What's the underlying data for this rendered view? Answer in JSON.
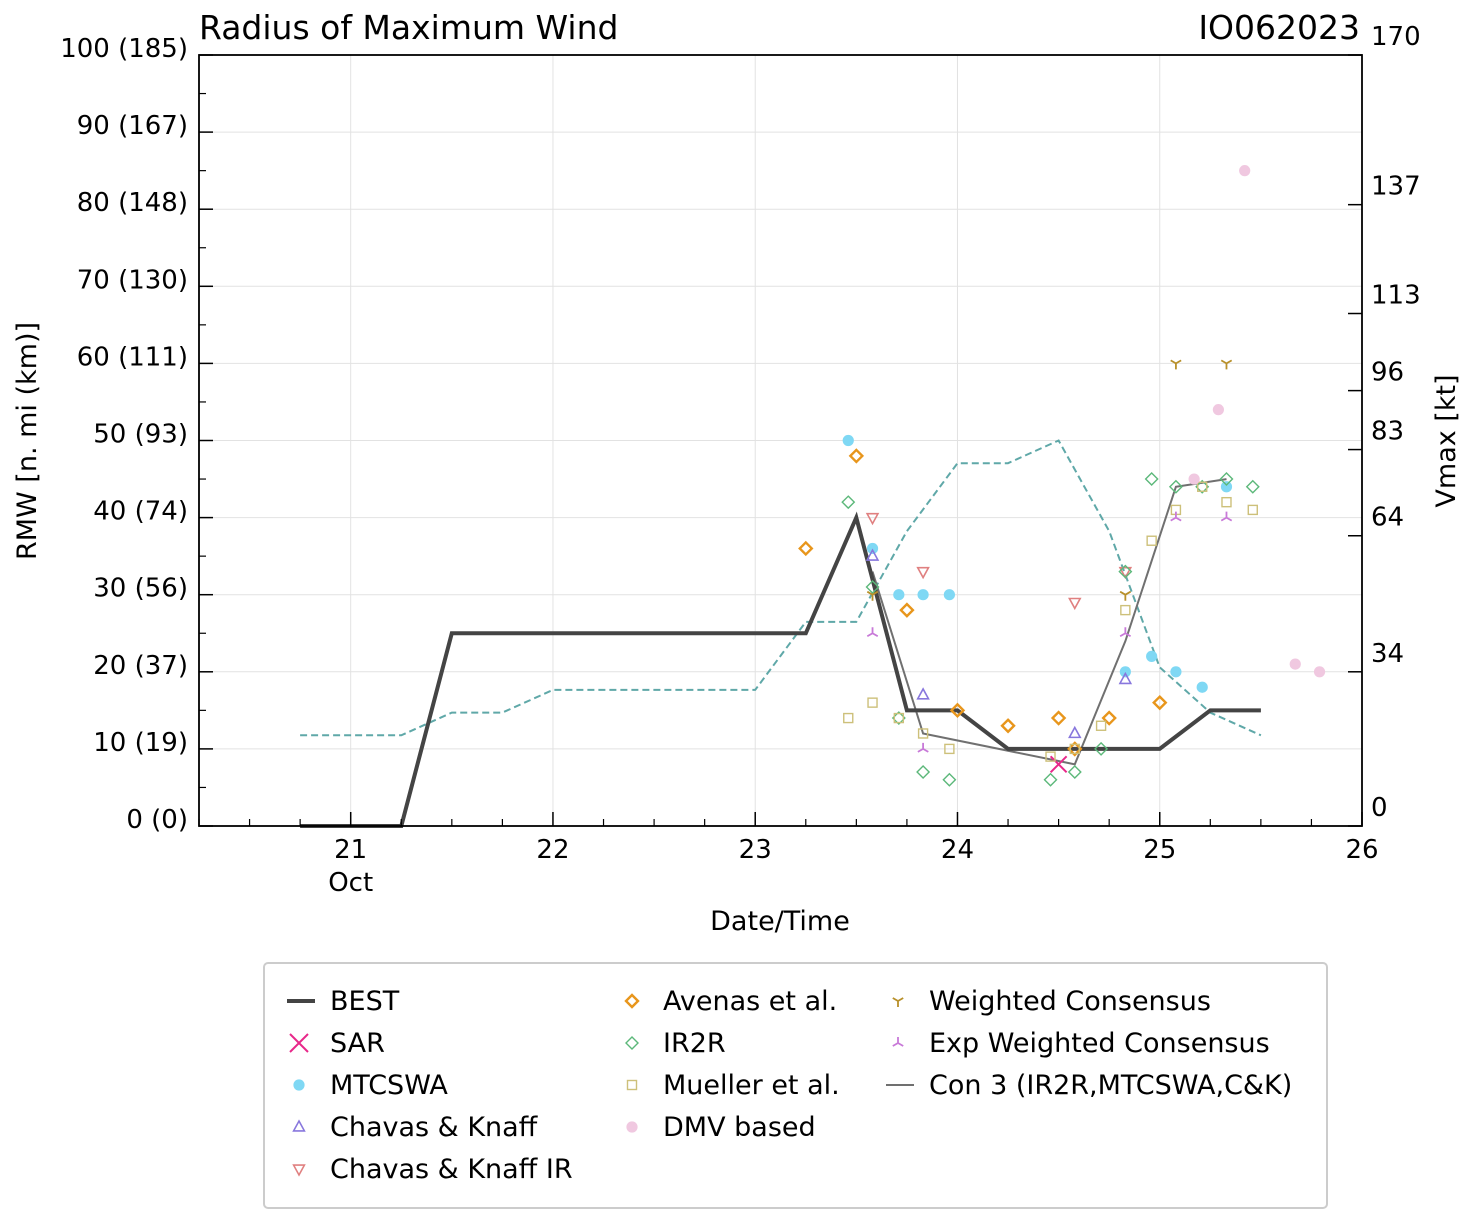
{
  "chart_data": {
    "type": "line",
    "title": "Radius of Maximum Wind",
    "storm_id": "IO062023",
    "xlabel": "Date/Time",
    "ylabel": "RMW [n. mi (km)]",
    "y2label": "Vmax [kt]",
    "xlim": [
      20.25,
      26.0
    ],
    "ylim": [
      0,
      100
    ],
    "y2lim": [
      0,
      170
    ],
    "grid": true,
    "legend_position": "bottom",
    "x_ticks": [
      {
        "value": 21,
        "label": "21",
        "sublabel": "Oct"
      },
      {
        "value": 22,
        "label": "22",
        "sublabel": ""
      },
      {
        "value": 23,
        "label": "23",
        "sublabel": ""
      },
      {
        "value": 24,
        "label": "24",
        "sublabel": ""
      },
      {
        "value": 25,
        "label": "25",
        "sublabel": ""
      },
      {
        "value": 26,
        "label": "26",
        "sublabel": ""
      }
    ],
    "y_ticks": [
      {
        "value": 0,
        "label": "0 (0)"
      },
      {
        "value": 10,
        "label": "10 (19)"
      },
      {
        "value": 20,
        "label": "20 (37)"
      },
      {
        "value": 30,
        "label": "30 (56)"
      },
      {
        "value": 40,
        "label": "40 (74)"
      },
      {
        "value": 50,
        "label": "50 (93)"
      },
      {
        "value": 60,
        "label": "60 (111)"
      },
      {
        "value": 70,
        "label": "70 (130)"
      },
      {
        "value": 80,
        "label": "80 (148)"
      },
      {
        "value": 90,
        "label": "90 (167)"
      },
      {
        "value": 100,
        "label": "100 (185)"
      }
    ],
    "y2_ticks": [
      {
        "value": 0,
        "label": "0"
      },
      {
        "value": 34,
        "label": "34"
      },
      {
        "value": 64,
        "label": "64"
      },
      {
        "value": 83,
        "label": "83"
      },
      {
        "value": 96,
        "label": "96"
      },
      {
        "value": 113,
        "label": "113"
      },
      {
        "value": 137,
        "label": "137"
      },
      {
        "value": 170,
        "label": "170"
      }
    ],
    "series": [
      {
        "name": "BEST",
        "kind": "line",
        "axis": "left",
        "color": "#444444",
        "x": [
          20.75,
          21.0,
          21.25,
          21.5,
          21.75,
          22.0,
          22.25,
          22.5,
          22.75,
          23.0,
          23.25,
          23.5,
          23.75,
          24.0,
          24.25,
          24.5,
          24.75,
          25.0,
          25.25,
          25.5
        ],
        "y": [
          0,
          0,
          0,
          25,
          25,
          25,
          25,
          25,
          25,
          25,
          25,
          40,
          15,
          15,
          10,
          10,
          10,
          10,
          15,
          15
        ]
      },
      {
        "name": "SAR",
        "kind": "marker",
        "marker": "x",
        "axis": "left",
        "color": "#e8288a",
        "x": [
          24.5
        ],
        "y": [
          8
        ]
      },
      {
        "name": "MTCSWA",
        "kind": "marker",
        "marker": "circle",
        "axis": "left",
        "color": "#7fd8f4",
        "x": [
          23.46,
          23.58,
          23.71,
          23.83,
          23.96,
          24.83,
          24.96,
          25.08,
          25.21,
          25.33
        ],
        "y": [
          50,
          36,
          30,
          30,
          30,
          20,
          22,
          20,
          18,
          44
        ]
      },
      {
        "name": "Chavas & Knaff",
        "kind": "marker",
        "marker": "triangle-up",
        "axis": "left",
        "color": "#8877dd",
        "x": [
          23.58,
          23.83,
          24.58,
          24.83
        ],
        "y": [
          35,
          17,
          12,
          19
        ]
      },
      {
        "name": "Chavas & Knaff IR",
        "kind": "marker",
        "marker": "triangle-down",
        "axis": "left",
        "color": "#e08080",
        "x": [
          23.58,
          23.83,
          24.58,
          24.83
        ],
        "y": [
          40,
          33,
          29,
          33
        ]
      },
      {
        "name": "Avenas et al.",
        "kind": "marker",
        "marker": "diamond",
        "axis": "left",
        "color": "#e8961c",
        "x": [
          23.25,
          23.5,
          23.75,
          24.0,
          24.25,
          24.5,
          24.58,
          24.75,
          25.0
        ],
        "y": [
          36,
          48,
          28,
          15,
          13,
          14,
          10,
          14,
          16
        ]
      },
      {
        "name": "IR2R",
        "kind": "marker",
        "marker": "diamond-open",
        "axis": "left",
        "color": "#5cb87a",
        "x": [
          23.46,
          23.58,
          23.71,
          23.83,
          23.96,
          24.46,
          24.58,
          24.71,
          24.83,
          24.96,
          25.08,
          25.21,
          25.33,
          25.46
        ],
        "y": [
          42,
          31,
          14,
          7,
          6,
          6,
          7,
          10,
          33,
          45,
          44,
          44,
          45,
          44
        ]
      },
      {
        "name": "Mueller et al.",
        "kind": "marker",
        "marker": "square",
        "axis": "left",
        "color": "#cdc07a",
        "x": [
          23.46,
          23.58,
          23.71,
          23.83,
          23.96,
          24.46,
          24.58,
          24.71,
          24.83,
          24.96,
          25.08,
          25.21,
          25.33,
          25.46
        ],
        "y": [
          14,
          16,
          14,
          12,
          10,
          9,
          10,
          13,
          28,
          37,
          41,
          44,
          42,
          41
        ]
      },
      {
        "name": "DMV based",
        "kind": "marker",
        "marker": "circle",
        "axis": "left",
        "color": "#f0c8e0",
        "x": [
          25.17,
          25.29,
          25.42,
          25.67,
          25.79
        ],
        "y": [
          45,
          54,
          85,
          21,
          20
        ]
      },
      {
        "name": "Weighted Consensus",
        "kind": "marker",
        "marker": "tri-down",
        "axis": "left",
        "color": "#b8902a",
        "x": [
          23.58,
          24.83,
          25.08,
          25.33
        ],
        "y": [
          30,
          30,
          60,
          60
        ]
      },
      {
        "name": "Exp Weighted Consensus",
        "kind": "marker",
        "marker": "tri-up",
        "axis": "left",
        "color": "#c879d8",
        "x": [
          23.58,
          23.83,
          24.83,
          25.08,
          25.33
        ],
        "y": [
          25,
          10,
          25,
          40,
          40
        ]
      },
      {
        "name": "Con 3 (IR2R,MTCSWA,C&K)",
        "kind": "line",
        "axis": "left",
        "color": "#707070",
        "x": [
          23.58,
          23.83,
          24.58,
          24.83,
          25.08,
          25.33
        ],
        "y": [
          33,
          12,
          8,
          24,
          44,
          45
        ]
      },
      {
        "name": "Vmax (right axis)",
        "kind": "dashed-line",
        "axis": "right",
        "color": "#5fa8a8",
        "x": [
          20.75,
          21.0,
          21.25,
          21.5,
          21.75,
          22.0,
          22.25,
          22.5,
          22.75,
          23.0,
          23.25,
          23.5,
          23.75,
          24.0,
          24.25,
          24.5,
          24.75,
          25.0,
          25.25,
          25.5
        ],
        "y": [
          20,
          20,
          20,
          25,
          25,
          30,
          30,
          30,
          30,
          30,
          45,
          45,
          65,
          80,
          80,
          85,
          65,
          35,
          25,
          20
        ]
      }
    ]
  }
}
